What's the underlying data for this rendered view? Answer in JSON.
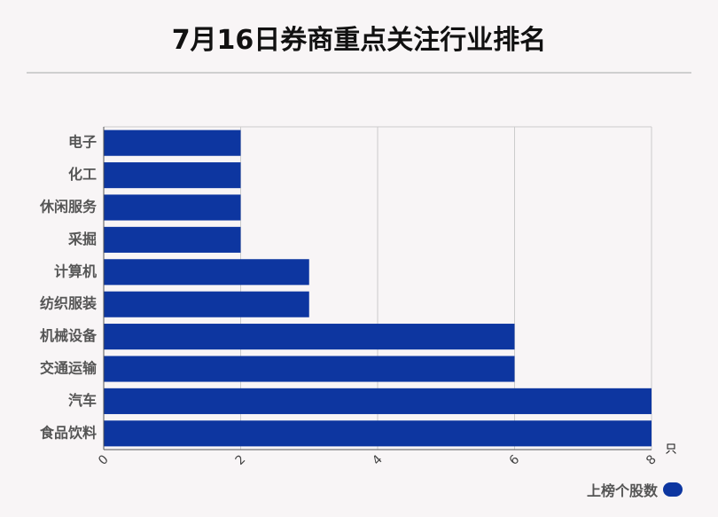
{
  "title": "7月16日券商重点关注行业排名",
  "colors": {
    "bar": "#0d36a0",
    "grid": "#cccccc",
    "axis": "#555555"
  },
  "chart_data": {
    "type": "bar",
    "orientation": "horizontal",
    "categories": [
      "电子",
      "化工",
      "休闲服务",
      "采掘",
      "计算机",
      "纺织服装",
      "机械设备",
      "交通运输",
      "汽车",
      "食品饮料"
    ],
    "series": [
      {
        "name": "上榜个股数",
        "values": [
          2,
          2,
          2,
          2,
          3,
          3,
          6,
          6,
          8,
          8
        ]
      }
    ],
    "xlim": [
      0,
      8
    ],
    "x_ticks": [
      "0",
      "2",
      "4",
      "6",
      "8"
    ],
    "x_unit": "只",
    "grid": true,
    "legend_position": "bottom-right"
  }
}
